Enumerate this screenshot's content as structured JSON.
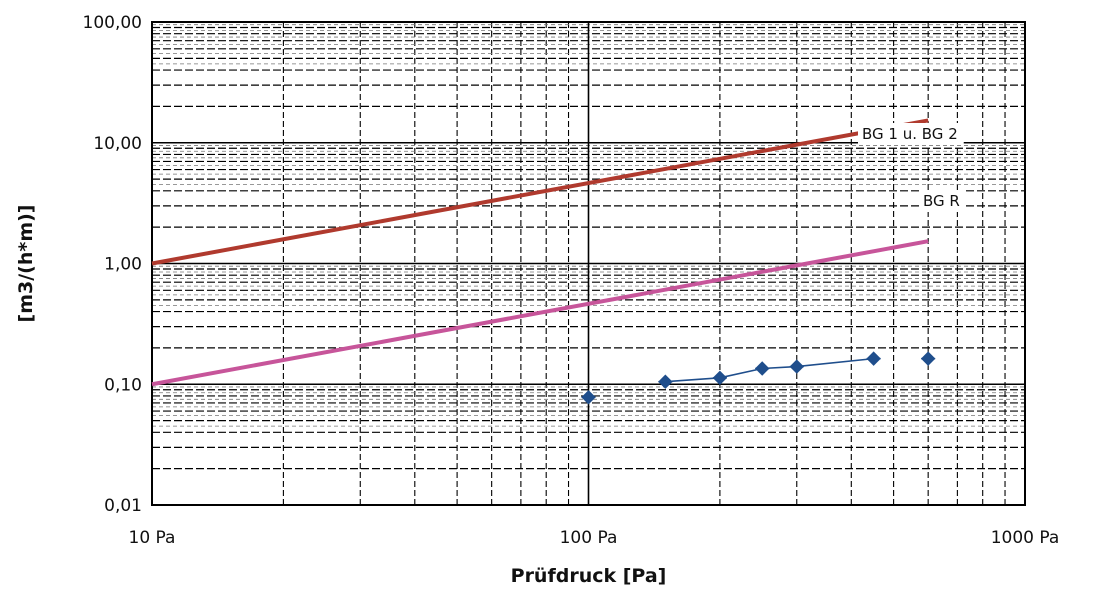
{
  "chart_data": {
    "type": "line",
    "x_scale": "log",
    "y_scale": "log",
    "xlim": [
      10,
      1000
    ],
    "ylim": [
      0.01,
      100
    ],
    "xlabel": "Prüfdruck [Pa]",
    "ylabel": "[m3/(h*m)]",
    "x_ticks": [
      {
        "value": 10,
        "label": "10 Pa"
      },
      {
        "value": 100,
        "label": "100 Pa"
      },
      {
        "value": 1000,
        "label": "1000 Pa"
      }
    ],
    "y_ticks": [
      {
        "value": 100,
        "label": "100,00"
      },
      {
        "value": 10,
        "label": "10,00"
      },
      {
        "value": 1,
        "label": "1,00"
      },
      {
        "value": 0.1,
        "label": "0,10"
      },
      {
        "value": 0.01,
        "label": "0,01"
      }
    ],
    "grid": true,
    "series": [
      {
        "name": "BG 1 u. BG 2",
        "color": "#b03a2e",
        "marker": "none",
        "x": [
          10,
          600
        ],
        "y": [
          1.0,
          15.3
        ]
      },
      {
        "name": "BG R",
        "color": "#c7559a",
        "marker": "none",
        "x": [
          10,
          600
        ],
        "y": [
          0.1,
          1.53
        ]
      },
      {
        "name": "",
        "color": "#1f4e8c",
        "marker": "diamond",
        "x": [
          100,
          150,
          200,
          250,
          300,
          450,
          600
        ],
        "y": [
          0.078,
          0.105,
          0.113,
          0.135,
          0.14,
          0.163,
          0.163
        ],
        "connect_from_index": 1,
        "connect_to_index": 5
      }
    ]
  }
}
